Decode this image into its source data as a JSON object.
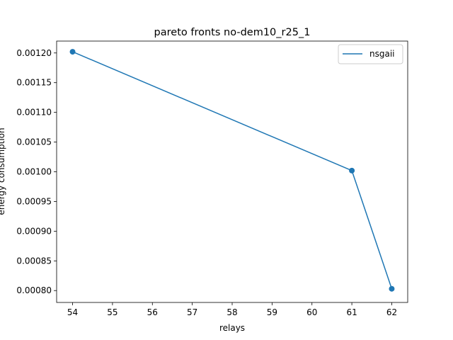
{
  "chart_data": {
    "type": "line",
    "title": "pareto fronts no-dem10_r25_1",
    "xlabel": "relays",
    "ylabel": "energy consumption",
    "xlim": [
      53.6,
      62.4
    ],
    "ylim": [
      0.00078,
      0.00122
    ],
    "x_ticks": [
      54,
      55,
      56,
      57,
      58,
      59,
      60,
      61,
      62
    ],
    "x_tick_labels": [
      "54",
      "55",
      "56",
      "57",
      "58",
      "59",
      "60",
      "61",
      "62"
    ],
    "y_ticks": [
      0.0008,
      0.00085,
      0.0009,
      0.00095,
      0.001,
      0.00105,
      0.0011,
      0.00115,
      0.0012
    ],
    "y_tick_labels": [
      "0.00080",
      "0.00085",
      "0.00090",
      "0.00095",
      "0.00100",
      "0.00105",
      "0.00110",
      "0.00115",
      "0.00120"
    ],
    "grid": false,
    "legend_position": "top-right",
    "series": [
      {
        "name": "nsgaii",
        "color": "#1f77b4",
        "marker": "circle",
        "x": [
          54,
          61,
          62
        ],
        "y": [
          0.001202,
          0.001002,
          0.000803
        ]
      }
    ]
  }
}
